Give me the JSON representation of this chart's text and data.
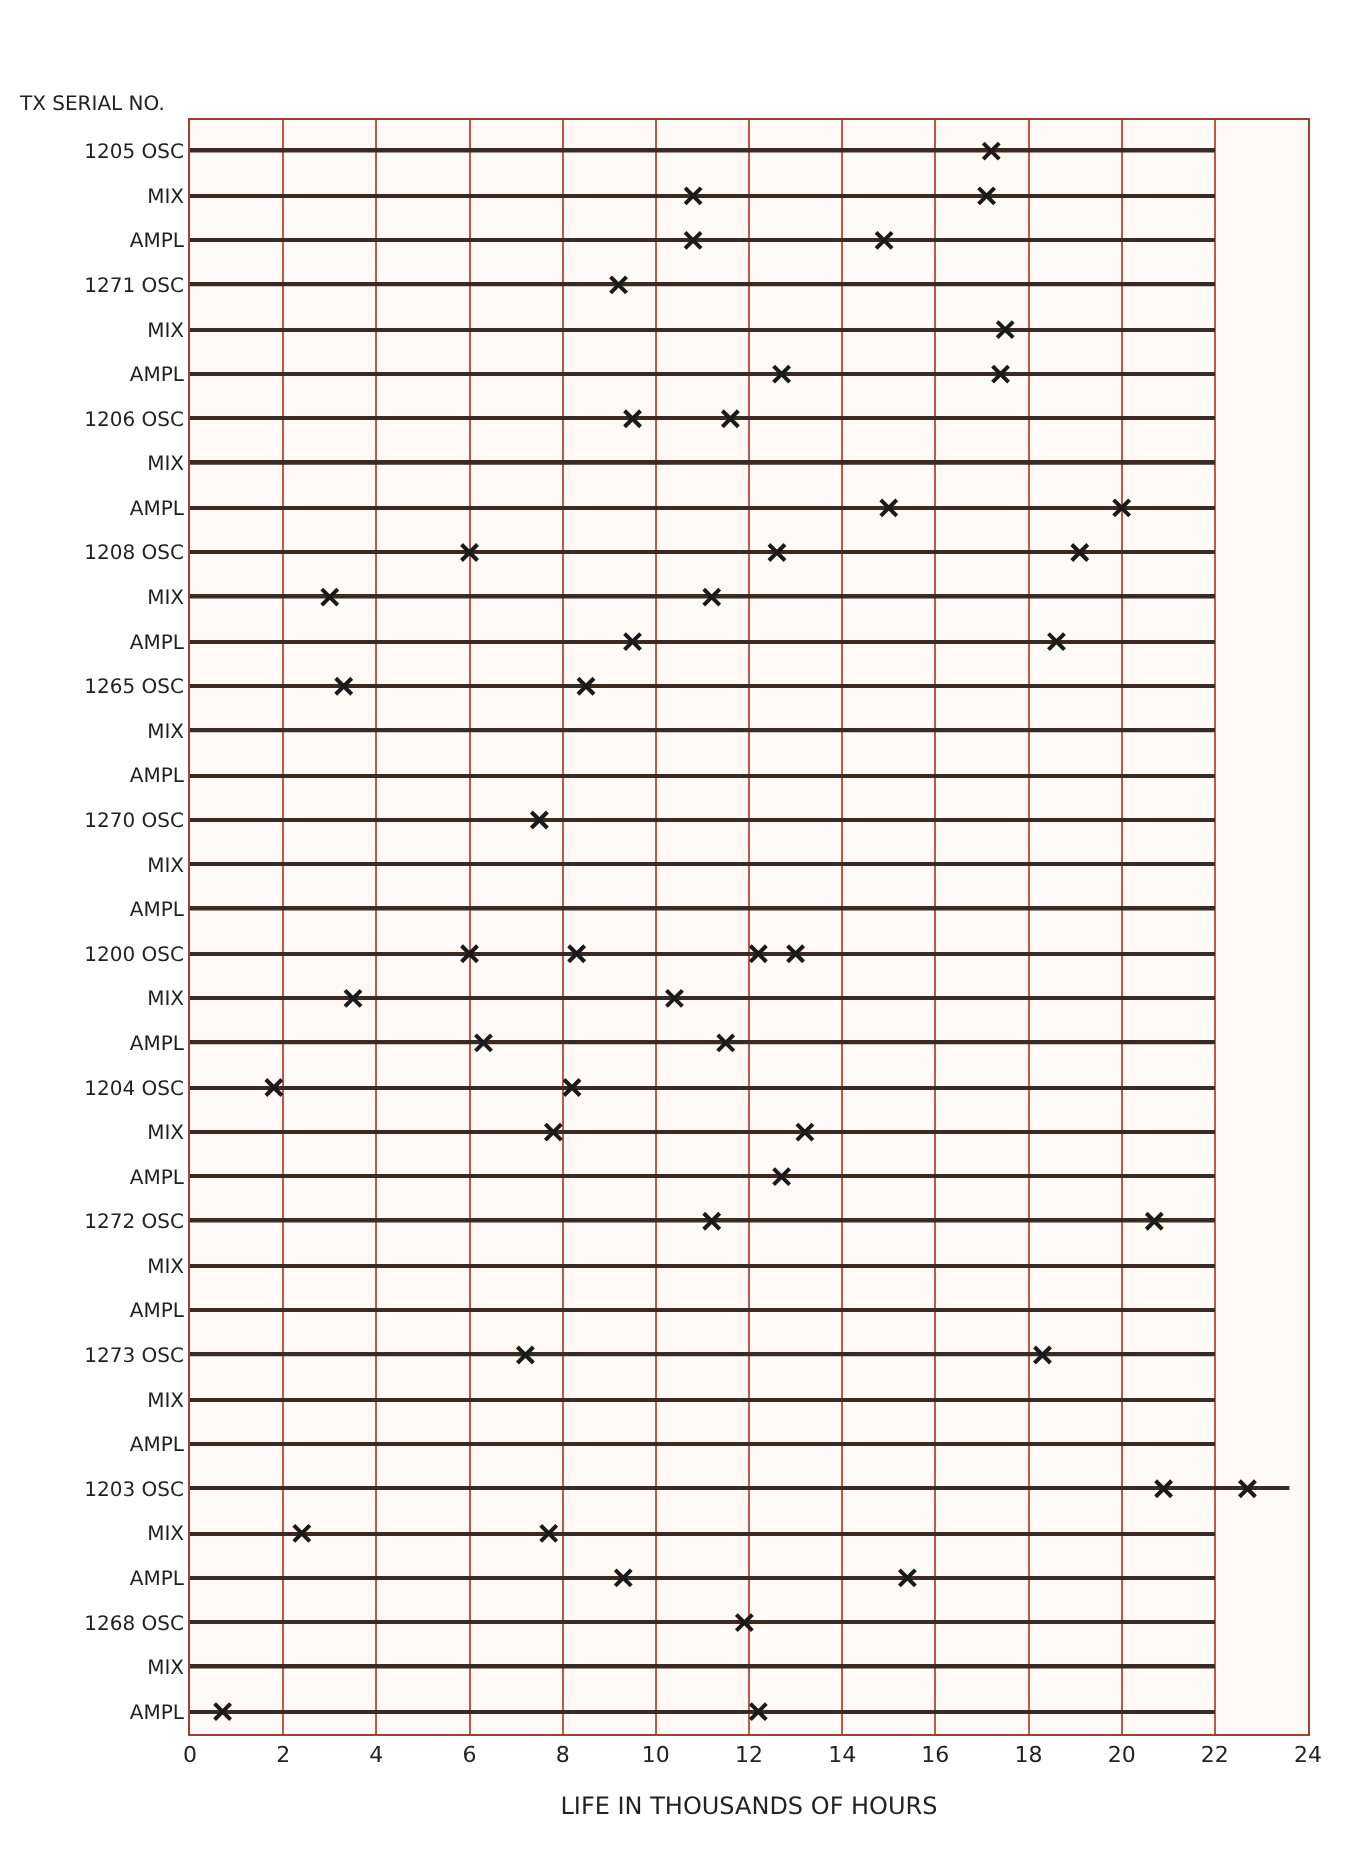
{
  "chart_data": {
    "type": "scatter",
    "orientation": "horizontal",
    "xlabel": "LIFE IN THOUSANDS OF HOURS",
    "ylabel": "TX SERIAL NO.",
    "categories": [
      "1205 OSC",
      "MIX",
      "AMPL",
      "1271 OSC",
      "MIX",
      "AMPL",
      "1206 OSC",
      "MIX",
      "AMPL",
      "1208 OSC",
      "MIX",
      "AMPL",
      "1265 OSC",
      "MIX",
      "AMPL",
      "1270 OSC",
      "MIX",
      "AMPL",
      "1200 OSC",
      "MIX",
      "AMPL",
      "1204 OSC",
      "MIX",
      "AMPL",
      "1272 OSC",
      "MIX",
      "AMPL",
      "1273 OSC",
      "MIX",
      "AMPL",
      "1203 OSC",
      "MIX",
      "AMPL",
      "1268 OSC",
      "MIX",
      "AMPL"
    ],
    "xlim": [
      0,
      24
    ],
    "xticks": [
      0,
      2,
      4,
      6,
      8,
      10,
      12,
      14,
      16,
      18,
      20,
      22,
      24
    ],
    "grid": "x",
    "series": [
      {
        "type": "bar",
        "color": "#3a2a22",
        "values": [
          22,
          22,
          22,
          22,
          22,
          22,
          22,
          22,
          22,
          22,
          22,
          22,
          22,
          22,
          22,
          22,
          22,
          22,
          22,
          22,
          22,
          22,
          22,
          22,
          22,
          22,
          22,
          22,
          22,
          22,
          23.6,
          22,
          22,
          22,
          22,
          22
        ]
      },
      {
        "marker": "cross",
        "color": "#1a1a1a",
        "values": [
          17.2,
          10.8,
          10.8,
          9.2,
          17.5,
          12.7,
          9.5,
          null,
          15.0,
          6.0,
          3.0,
          9.5,
          3.3,
          null,
          null,
          7.5,
          null,
          null,
          6.0,
          3.5,
          6.3,
          1.8,
          7.8,
          12.7,
          11.2,
          null,
          null,
          7.2,
          null,
          null,
          20.9,
          2.4,
          9.3,
          11.9,
          null,
          0.7
        ]
      },
      {
        "marker": "cross",
        "color": "#1a1a1a",
        "values": [
          null,
          17.1,
          14.9,
          null,
          null,
          17.4,
          11.6,
          null,
          20.0,
          12.6,
          11.2,
          18.6,
          8.5,
          null,
          null,
          null,
          null,
          null,
          8.3,
          10.4,
          11.5,
          8.2,
          13.2,
          null,
          20.7,
          null,
          null,
          18.3,
          null,
          null,
          22.7,
          7.7,
          15.4,
          null,
          null,
          12.2
        ]
      },
      {
        "marker": "cross",
        "color": "#1a1a1a",
        "values": [
          null,
          null,
          null,
          null,
          null,
          null,
          null,
          null,
          null,
          19.1,
          null,
          null,
          null,
          null,
          null,
          null,
          null,
          null,
          12.2,
          null,
          null,
          null,
          null,
          null,
          null,
          null,
          null,
          null,
          null,
          null,
          null,
          null,
          null,
          null,
          null,
          null
        ]
      },
      {
        "marker": "cross",
        "color": "#1a1a1a",
        "values": [
          null,
          null,
          null,
          null,
          null,
          null,
          null,
          null,
          null,
          null,
          null,
          null,
          null,
          null,
          null,
          null,
          null,
          null,
          13.0,
          null,
          null,
          null,
          null,
          null,
          null,
          null,
          null,
          null,
          null,
          null,
          null,
          null,
          null,
          null,
          null,
          null
        ]
      }
    ]
  }
}
